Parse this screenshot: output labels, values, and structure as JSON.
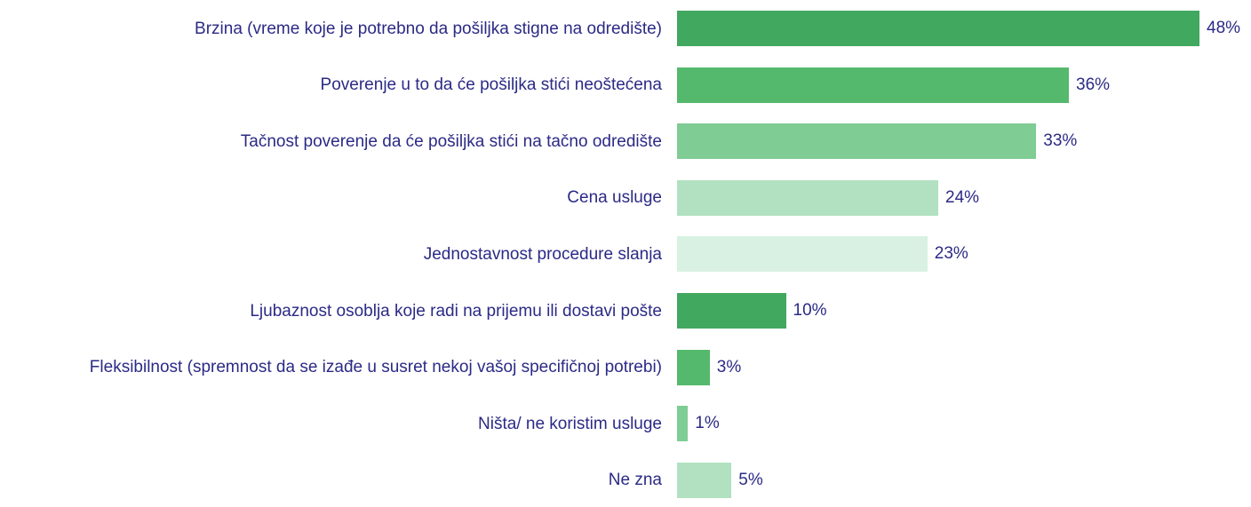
{
  "chart_data": {
    "type": "bar",
    "orientation": "horizontal",
    "categories": [
      "Brzina (vreme koje je potrebno da pošiljka stigne na odredište)",
      "Poverenje u to da će pošiljka stići neoštećena",
      "Tačnost poverenje da će pošiljka stići na tačno odredište",
      "Cena usluge",
      "Jednostavnost procedure slanja",
      "Ljubaznost osoblja koje radi na prijemu ili dostavi pošte",
      "Fleksibilnost (spremnost da se izađe u susret nekoj vašoj specifičnoj potrebi)",
      "Ništa/ ne koristim usluge",
      "Ne zna"
    ],
    "values": [
      48,
      36,
      33,
      24,
      23,
      10,
      3,
      1,
      5
    ],
    "value_labels": [
      "48%",
      "36%",
      "33%",
      "24%",
      "23%",
      "10%",
      "3%",
      "1%",
      "5%"
    ],
    "colors": [
      "#41a85f",
      "#55b96d",
      "#7fcc95",
      "#b1e1c0",
      "#d9f1e2",
      "#41a85f",
      "#55b96d",
      "#7fcc95",
      "#b1e1c0"
    ]
  }
}
